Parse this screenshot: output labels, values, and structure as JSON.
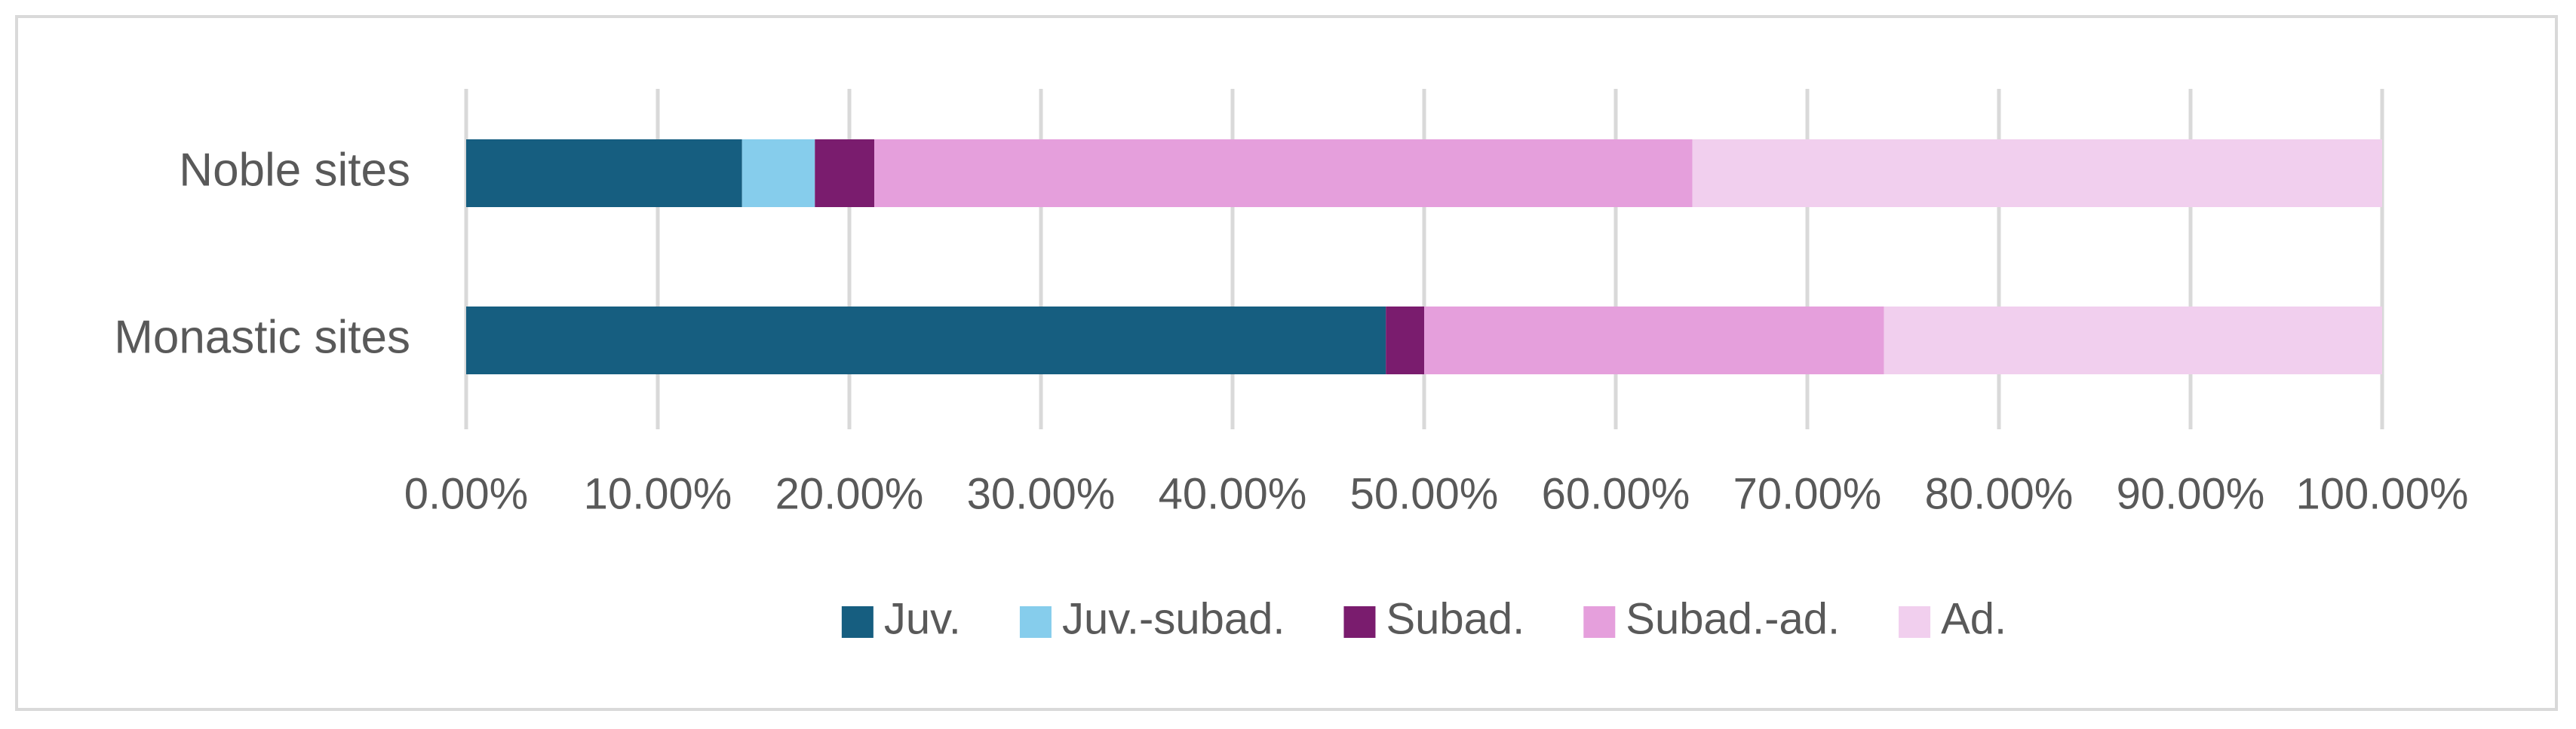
{
  "chart_data": {
    "type": "bar",
    "orientation": "horizontal",
    "stacked": "percent",
    "categories": [
      "Noble sites",
      "Monastic sites"
    ],
    "series": [
      {
        "name": "Juv.",
        "color": "#165e80",
        "values": [
          14.4,
          48.0
        ]
      },
      {
        "name": "Juv.-subad.",
        "color": "#86cdec",
        "values": [
          3.8,
          0.0
        ]
      },
      {
        "name": "Subad.",
        "color": "#7a1c6e",
        "values": [
          3.1,
          2.0
        ]
      },
      {
        "name": "Subad.-ad.",
        "color": "#e59fdc",
        "values": [
          42.7,
          24.0
        ]
      },
      {
        "name": "Ad.",
        "color": "#f1cfee",
        "values": [
          36.0,
          26.0
        ]
      }
    ],
    "xlim": [
      0,
      100
    ],
    "x_ticks": [
      0,
      10,
      20,
      30,
      40,
      50,
      60,
      70,
      80,
      90,
      100
    ],
    "x_tick_labels": [
      "0.00%",
      "10.00%",
      "20.00%",
      "30.00%",
      "40.00%",
      "50.00%",
      "60.00%",
      "70.00%",
      "80.00%",
      "90.00%",
      "100.00%"
    ],
    "grid": true,
    "legend_position": "bottom",
    "title": "",
    "xlabel": "",
    "ylabel": ""
  }
}
